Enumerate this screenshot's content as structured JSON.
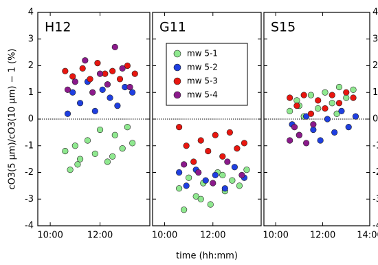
{
  "chart_data": [
    {
      "type": "scatter",
      "title": "H12",
      "ylabel": "cO3(5 μm)/cO3(10 μm) − 1 (%)",
      "xlim": [
        9.5,
        14
      ],
      "ylim": [
        -4,
        4
      ],
      "xticks": [
        {
          "value": 10,
          "label": "10:00"
        },
        {
          "value": 12,
          "label": "12:00"
        }
      ],
      "yticks": [
        -4,
        -3,
        -2,
        -1,
        0,
        1,
        2,
        3,
        4
      ],
      "series": [
        {
          "color": "#8fe88f",
          "x": [
            10.6,
            10.8,
            11.0,
            11.2,
            11.5,
            11.8,
            12.0,
            12.3,
            12.6,
            12.9,
            13.1,
            13.3,
            11.1,
            12.5
          ],
          "y": [
            -1.2,
            -1.9,
            -1.0,
            -1.5,
            -0.8,
            -1.3,
            -0.4,
            -1.6,
            -0.6,
            -1.1,
            -0.3,
            -0.9,
            -1.7,
            -1.4
          ]
        },
        {
          "color": "#1f3fe0",
          "x": [
            10.7,
            10.9,
            11.2,
            11.5,
            11.8,
            12.1,
            12.4,
            12.7,
            13.0,
            13.3
          ],
          "y": [
            0.2,
            1.0,
            0.6,
            1.4,
            0.3,
            1.1,
            0.8,
            0.5,
            1.2,
            1.0
          ]
        },
        {
          "color": "#e8160f",
          "x": [
            10.6,
            10.9,
            11.3,
            11.6,
            11.9,
            12.2,
            12.5,
            12.8,
            13.1,
            13.4
          ],
          "y": [
            1.8,
            1.6,
            1.9,
            1.5,
            2.1,
            1.7,
            1.8,
            1.5,
            2.0,
            1.7
          ]
        },
        {
          "color": "#8b1a8b",
          "x": [
            10.7,
            11.0,
            11.4,
            11.7,
            12.0,
            12.3,
            12.6,
            12.9,
            13.2
          ],
          "y": [
            1.1,
            1.4,
            2.2,
            1.0,
            1.7,
            1.3,
            2.7,
            1.9,
            1.2
          ]
        }
      ]
    },
    {
      "type": "scatter",
      "title": "G11",
      "xlabel": "time (hh:mm)",
      "xlim": [
        9.5,
        14
      ],
      "ylim": [
        -4,
        4
      ],
      "xticks": [
        {
          "value": 10,
          "label": "10:00"
        },
        {
          "value": 12,
          "label": "12:00"
        }
      ],
      "yticks": [
        -4,
        -3,
        -2,
        -1,
        0,
        1,
        2,
        3,
        4
      ],
      "legend": "top-right",
      "series": [
        {
          "name": "mw 5-1",
          "color": "#8fe88f",
          "x": [
            10.6,
            10.8,
            11.0,
            11.3,
            11.6,
            11.9,
            12.2,
            12.5,
            12.8,
            13.1,
            13.4,
            11.5,
            12.4
          ],
          "y": [
            -2.6,
            -3.4,
            -2.2,
            -2.9,
            -2.4,
            -3.2,
            -2.0,
            -2.7,
            -2.3,
            -2.5,
            -1.9,
            -3.0,
            -2.1
          ]
        },
        {
          "name": "mw 5-2",
          "color": "#1f3fe0",
          "x": [
            10.6,
            10.9,
            11.3,
            11.7,
            12.1,
            12.5,
            12.9,
            13.3
          ],
          "y": [
            -2.0,
            -2.5,
            -1.9,
            -2.3,
            -2.1,
            -2.6,
            -1.8,
            -2.2
          ]
        },
        {
          "name": "mw 5-3",
          "color": "#e8160f",
          "x": [
            10.6,
            10.9,
            11.2,
            11.5,
            11.8,
            12.1,
            12.4,
            12.7,
            13.0,
            13.3
          ],
          "y": [
            -0.3,
            -1.0,
            -1.6,
            -0.8,
            -1.2,
            -0.6,
            -1.4,
            -0.5,
            -1.1,
            -0.9
          ]
        },
        {
          "name": "mw 5-4",
          "color": "#8b1a8b",
          "x": [
            10.8,
            11.4,
            12.0,
            12.6,
            13.2
          ],
          "y": [
            -1.7,
            -2.0,
            -2.4,
            -1.6,
            -2.1
          ]
        }
      ]
    },
    {
      "type": "scatter",
      "title": "S15",
      "xlim": [
        9.5,
        14
      ],
      "ylim": [
        -4,
        4
      ],
      "xticks": [
        {
          "value": 10,
          "label": "10:00"
        },
        {
          "value": 12,
          "label": "12:00"
        },
        {
          "value": 14,
          "label": "14:00"
        }
      ],
      "yticks": [
        -4,
        -3,
        -2,
        -1,
        0,
        1,
        2,
        3,
        4
      ],
      "series": [
        {
          "color": "#8fe88f",
          "x": [
            10.6,
            10.9,
            11.2,
            11.5,
            11.8,
            12.1,
            12.4,
            12.7,
            13.0,
            13.3,
            11.0,
            12.6
          ],
          "y": [
            0.3,
            0.7,
            0.1,
            0.9,
            0.4,
            1.0,
            0.6,
            1.2,
            0.8,
            1.1,
            0.5,
            0.2
          ]
        },
        {
          "color": "#1f3fe0",
          "x": [
            10.7,
            11.0,
            11.3,
            11.6,
            11.9,
            12.2,
            12.5,
            12.8,
            13.1,
            13.4
          ],
          "y": [
            -0.2,
            -0.6,
            0.1,
            -0.4,
            -0.8,
            0.0,
            -0.5,
            0.3,
            -0.3,
            0.1
          ]
        },
        {
          "color": "#e8160f",
          "x": [
            10.6,
            10.9,
            11.2,
            11.5,
            11.8,
            12.1,
            12.4,
            12.7,
            13.0,
            13.3
          ],
          "y": [
            0.8,
            0.5,
            0.9,
            0.2,
            0.7,
            0.4,
            0.9,
            0.6,
            1.0,
            0.8
          ]
        },
        {
          "color": "#8b1a8b",
          "x": [
            10.6,
            10.8,
            11.0,
            11.3,
            11.6
          ],
          "y": [
            -0.8,
            -0.3,
            -0.6,
            -0.9,
            -0.2
          ]
        }
      ]
    }
  ]
}
